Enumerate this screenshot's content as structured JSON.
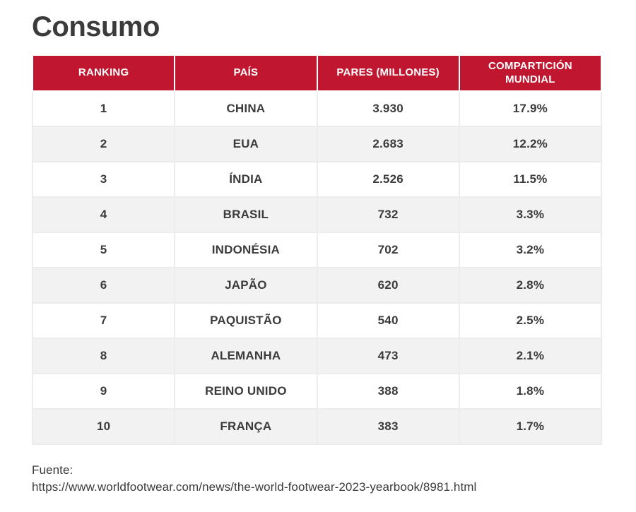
{
  "page": {
    "title": "Consumo",
    "source": {
      "label": "Fuente:",
      "url": "https://www.worldfootwear.com/news/the-world-footwear-2023-yearbook/8981.html"
    }
  },
  "colors": {
    "header_bg": "#c1162f",
    "header_text": "#ffffff",
    "row_alt_bg": "#f2f2f2",
    "body_text": "#3b3b3b",
    "grid_line": "#ececec"
  },
  "table": {
    "columns": [
      "RANKING",
      "PAÍS",
      "PARES (MILLONES)",
      "COMPARTICIÓN MUNDIAL"
    ],
    "rows": [
      [
        "1",
        "CHINA",
        "3.930",
        "17.9%"
      ],
      [
        "2",
        "EUA",
        "2.683",
        "12.2%"
      ],
      [
        "3",
        "ÍNDIA",
        "2.526",
        "11.5%"
      ],
      [
        "4",
        "BRASIL",
        "732",
        "3.3%"
      ],
      [
        "5",
        "INDONÉSIA",
        "702",
        "3.2%"
      ],
      [
        "6",
        "JAPÃO",
        "620",
        "2.8%"
      ],
      [
        "7",
        "PAQUISTÃO",
        "540",
        "2.5%"
      ],
      [
        "8",
        "ALEMANHA",
        "473",
        "2.1%"
      ],
      [
        "9",
        "REINO UNIDO",
        "388",
        "1.8%"
      ],
      [
        "10",
        "FRANÇA",
        "383",
        "1.7%"
      ]
    ]
  },
  "chart_data": {
    "type": "table",
    "title": "Consumo",
    "columns": [
      "RANKING",
      "PAÍS",
      "PARES (MILLONES)",
      "COMPARTICIÓN MUNDIAL"
    ],
    "rows": [
      {
        "ranking": 1,
        "pais": "CHINA",
        "pares_millones": 3930,
        "comparticion_mundial_pct": 17.9
      },
      {
        "ranking": 2,
        "pais": "EUA",
        "pares_millones": 2683,
        "comparticion_mundial_pct": 12.2
      },
      {
        "ranking": 3,
        "pais": "ÍNDIA",
        "pares_millones": 2526,
        "comparticion_mundial_pct": 11.5
      },
      {
        "ranking": 4,
        "pais": "BRASIL",
        "pares_millones": 732,
        "comparticion_mundial_pct": 3.3
      },
      {
        "ranking": 5,
        "pais": "INDONÉSIA",
        "pares_millones": 702,
        "comparticion_mundial_pct": 3.2
      },
      {
        "ranking": 6,
        "pais": "JAPÃO",
        "pares_millones": 620,
        "comparticion_mundial_pct": 2.8
      },
      {
        "ranking": 7,
        "pais": "PAQUISTÃO",
        "pares_millones": 540,
        "comparticion_mundial_pct": 2.5
      },
      {
        "ranking": 8,
        "pais": "ALEMANHA",
        "pares_millones": 473,
        "comparticion_mundial_pct": 2.1
      },
      {
        "ranking": 9,
        "pais": "REINO UNIDO",
        "pares_millones": 388,
        "comparticion_mundial_pct": 1.8
      },
      {
        "ranking": 10,
        "pais": "FRANÇA",
        "pares_millones": 383,
        "comparticion_mundial_pct": 1.7
      }
    ],
    "source": "https://www.worldfootwear.com/news/the-world-footwear-2023-yearbook/8981.html"
  }
}
